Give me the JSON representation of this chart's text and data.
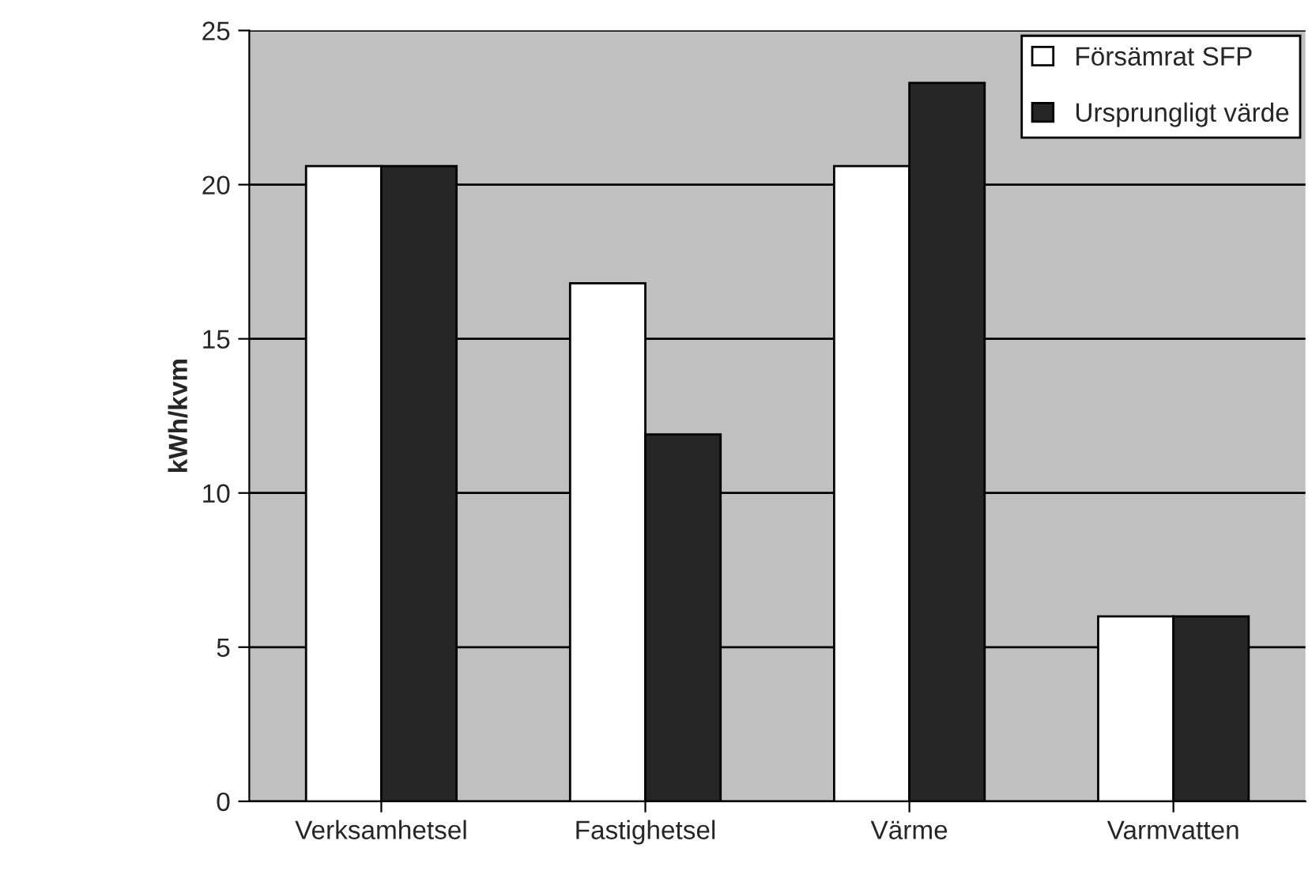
{
  "chart_data": {
    "type": "bar",
    "ylabel": "kWh/kvm",
    "categories": [
      "Verksamhetsel",
      "Fastighetsel",
      "Värme",
      "Varmvatten"
    ],
    "series": [
      {
        "name": "Försämrat SFP",
        "color": "#ffffff",
        "values": [
          20.6,
          16.8,
          20.6,
          6.0
        ]
      },
      {
        "name": "Ursprungligt värde",
        "color": "#262626",
        "values": [
          20.6,
          11.9,
          23.3,
          6.0
        ]
      }
    ],
    "ylim": [
      0,
      25
    ],
    "yticks": [
      0,
      5,
      10,
      15,
      20,
      25
    ],
    "grid": "y",
    "legend": "top right"
  }
}
